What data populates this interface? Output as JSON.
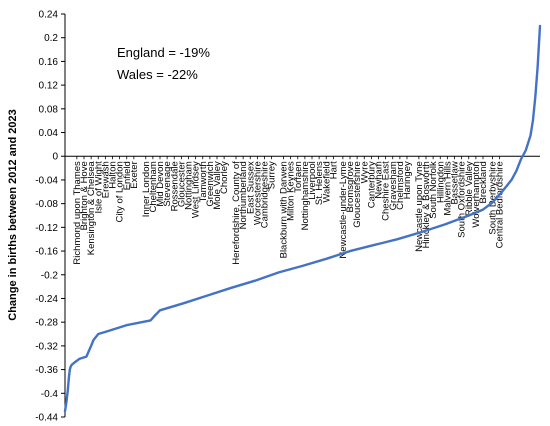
{
  "chart_data": {
    "type": "line",
    "ylabel": "Change in births between 2012 and 2023",
    "ylim": [
      -0.44,
      0.24
    ],
    "yticks": [
      0.24,
      0.2,
      0.16,
      0.12,
      0.08,
      0.04,
      0,
      -0.04,
      -0.08,
      -0.12,
      -0.16,
      -0.2,
      -0.24,
      -0.28,
      -0.32,
      -0.36,
      -0.4,
      -0.44
    ],
    "ytick_labels": [
      "0.24",
      "0.2",
      "0.16",
      "0.12",
      "0.08",
      "0.04",
      "0",
      "-0.04",
      "-0.08",
      "-0.12",
      "-0.16",
      "-0.2",
      "-0.24",
      "-0.28",
      "-0.32",
      "-0.36",
      "-0.4",
      "-0.44"
    ],
    "grid": false,
    "annotations": [
      "England = -19%",
      "Wales = -22%"
    ],
    "category_labels": [
      {
        "label": "Richmond upon Thames",
        "x": 0.025
      },
      {
        "label": "Brighton & Hove",
        "x": 0.04
      },
      {
        "label": "Kensington & Chelsea",
        "x": 0.055
      },
      {
        "label": "Isle of Wight",
        "x": 0.07
      },
      {
        "label": "Erewash",
        "x": 0.085
      },
      {
        "label": "Halton",
        "x": 0.1
      },
      {
        "label": "City of London",
        "x": 0.115
      },
      {
        "label": "Enfield",
        "x": 0.13
      },
      {
        "label": "Exeter",
        "x": 0.145
      },
      {
        "label": "Inner London",
        "x": 0.17
      },
      {
        "label": "Cheltenham",
        "x": 0.185
      },
      {
        "label": "Mid Devon",
        "x": 0.2
      },
      {
        "label": "Stevenage",
        "x": 0.215
      },
      {
        "label": "Rossendale",
        "x": 0.23
      },
      {
        "label": "Gloucester",
        "x": 0.245
      },
      {
        "label": "Nottingham",
        "x": 0.26
      },
      {
        "label": "West Lindsey",
        "x": 0.275
      },
      {
        "label": "Tamworth",
        "x": 0.29
      },
      {
        "label": "Greenwich",
        "x": 0.305
      },
      {
        "label": "Mole Valley",
        "x": 0.32
      },
      {
        "label": "Chorley",
        "x": 0.335
      },
      {
        "label": "Herefordshire, County of",
        "x": 0.36
      },
      {
        "label": "Northumberland",
        "x": 0.375
      },
      {
        "label": "East Sussex",
        "x": 0.39
      },
      {
        "label": "Worcestershire",
        "x": 0.405
      },
      {
        "label": "Cambridgeshire",
        "x": 0.42
      },
      {
        "label": "Surrey",
        "x": 0.435
      },
      {
        "label": "Blackburn with Darwen",
        "x": 0.46
      },
      {
        "label": "Milton Keynes",
        "x": 0.475
      },
      {
        "label": "Torfaen",
        "x": 0.49
      },
      {
        "label": "Nottinghamshire",
        "x": 0.505
      },
      {
        "label": "Liverpool",
        "x": 0.52
      },
      {
        "label": "St. Helens",
        "x": 0.535
      },
      {
        "label": "Wakefield",
        "x": 0.55
      },
      {
        "label": "Hart",
        "x": 0.565
      },
      {
        "label": "Newcastle-under-Lyme",
        "x": 0.585
      },
      {
        "label": "Bromsgrove",
        "x": 0.6
      },
      {
        "label": "Gloucestershire",
        "x": 0.615
      },
      {
        "label": "Wyre",
        "x": 0.63
      },
      {
        "label": "Canterbury",
        "x": 0.645
      },
      {
        "label": "Newham",
        "x": 0.66
      },
      {
        "label": "Cheshire East",
        "x": 0.675
      },
      {
        "label": "Gravesham",
        "x": 0.69
      },
      {
        "label": "Chelmsford",
        "x": 0.705
      },
      {
        "label": "Haringey",
        "x": 0.72
      },
      {
        "label": "Newcastle upon Tyne",
        "x": 0.745
      },
      {
        "label": "Hinckley & Bosworth",
        "x": 0.76
      },
      {
        "label": "South Norfolk",
        "x": 0.775
      },
      {
        "label": "Hillingdon",
        "x": 0.79
      },
      {
        "label": "Malvern Hills",
        "x": 0.805
      },
      {
        "label": "Bassetlaw",
        "x": 0.82
      },
      {
        "label": "South Oxfordshire",
        "x": 0.835
      },
      {
        "label": "Ribble Valley",
        "x": 0.85
      },
      {
        "label": "Wolverhampton",
        "x": 0.865
      },
      {
        "label": "Breckland",
        "x": 0.88
      },
      {
        "label": "South Derbyshire",
        "x": 0.9
      },
      {
        "label": "Central Bedfordshire",
        "x": 0.915
      }
    ],
    "series": [
      {
        "color": "#4472C4",
        "x": [
          0,
          0.003,
          0.006,
          0.008,
          0.01,
          0.012,
          0.014,
          0.02,
          0.03,
          0.045,
          0.055,
          0.06,
          0.07,
          0.09,
          0.13,
          0.18,
          0.19,
          0.2,
          0.25,
          0.3,
          0.35,
          0.4,
          0.45,
          0.5,
          0.55,
          0.6,
          0.65,
          0.7,
          0.75,
          0.8,
          0.85,
          0.88,
          0.9,
          0.92,
          0.94,
          0.95,
          0.96,
          0.97,
          0.98,
          0.985,
          0.99,
          0.995,
          1
        ],
        "values": [
          -0.43,
          -0.415,
          -0.395,
          -0.375,
          -0.36,
          -0.355,
          -0.352,
          -0.348,
          -0.342,
          -0.338,
          -0.32,
          -0.31,
          -0.3,
          -0.295,
          -0.285,
          -0.277,
          -0.268,
          -0.26,
          -0.248,
          -0.235,
          -0.222,
          -0.21,
          -0.196,
          -0.185,
          -0.173,
          -0.16,
          -0.15,
          -0.14,
          -0.128,
          -0.115,
          -0.1,
          -0.09,
          -0.078,
          -0.06,
          -0.04,
          -0.025,
          -0.005,
          0.01,
          0.035,
          0.06,
          0.1,
          0.15,
          0.22
        ]
      }
    ]
  }
}
